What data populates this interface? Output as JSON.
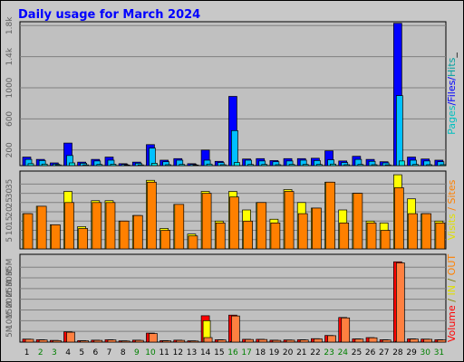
{
  "chart_data": [
    {
      "type": "bar",
      "panel": "hits",
      "title": "Daily usage for March 2024",
      "y_tick_labels": [
        "200",
        "600",
        "1000",
        "1.4k",
        "1.8k"
      ],
      "y_tick_values": [
        200,
        600,
        1000,
        1400,
        1800
      ],
      "ylim": [
        0,
        1850
      ],
      "ylabel_parts": [
        "Pages",
        "/",
        "Files",
        "/",
        "Hits",
        "_"
      ],
      "categories": [
        "1",
        "2",
        "3",
        "4",
        "5",
        "6",
        "7",
        "8",
        "9",
        "10",
        "11",
        "12",
        "13",
        "14",
        "15",
        "16",
        "17",
        "18",
        "19",
        "20",
        "21",
        "22",
        "23",
        "24",
        "25",
        "26",
        "27",
        "28",
        "29",
        "30",
        "31"
      ],
      "series": [
        {
          "name": "Hits",
          "color": "#0000ff",
          "values": [
            110,
            80,
            35,
            290,
            45,
            80,
            110,
            25,
            45,
            270,
            70,
            90,
            25,
            200,
            55,
            890,
            85,
            90,
            65,
            90,
            90,
            95,
            190,
            60,
            120,
            80,
            50,
            1830,
            110,
            85,
            70
          ]
        },
        {
          "name": "Files",
          "color": "#00c0ff",
          "values": [
            80,
            65,
            20,
            130,
            30,
            60,
            70,
            15,
            30,
            225,
            50,
            70,
            15,
            70,
            40,
            450,
            70,
            60,
            50,
            60,
            70,
            65,
            75,
            40,
            80,
            55,
            35,
            900,
            70,
            60,
            50
          ]
        },
        {
          "name": "Pages",
          "color": "#00e0e0",
          "values": [
            25,
            20,
            10,
            35,
            10,
            15,
            18,
            8,
            10,
            30,
            12,
            15,
            8,
            20,
            12,
            40,
            15,
            15,
            12,
            15,
            15,
            15,
            20,
            12,
            15,
            12,
            10,
            60,
            15,
            12,
            12
          ]
        }
      ]
    },
    {
      "type": "bar",
      "panel": "visits",
      "y_tick_labels": [
        "5",
        "10",
        "15",
        "20",
        "25",
        "30",
        "35"
      ],
      "y_tick_values": [
        5,
        10,
        15,
        20,
        25,
        30,
        35
      ],
      "ylim": [
        0,
        42
      ],
      "ylabel_parts": [
        "Visits",
        " / ",
        "Sites"
      ],
      "series": [
        {
          "name": "Sites",
          "color": "#ff8000",
          "values": [
            19,
            23,
            13,
            25,
            11,
            25,
            25,
            15,
            18,
            36,
            10,
            24,
            7,
            30,
            14,
            28,
            15,
            25,
            14,
            31,
            19,
            22,
            36,
            14,
            30,
            14,
            10,
            33,
            19,
            19,
            14
          ]
        },
        {
          "name": "Visits",
          "color": "#ffff00",
          "values": [
            19,
            23,
            13,
            31,
            12,
            26,
            26,
            15,
            18,
            37,
            11,
            24,
            8,
            31,
            15,
            31,
            21,
            25,
            16,
            32,
            25,
            22,
            36,
            21,
            30,
            15,
            14,
            40,
            27,
            19,
            15
          ]
        }
      ]
    },
    {
      "type": "bar",
      "panel": "volume",
      "y_tick_labels": [
        "5M",
        "10M",
        "15M",
        "20M",
        "25M",
        "30M",
        "35M"
      ],
      "y_tick_values": [
        5,
        10,
        15,
        20,
        25,
        30,
        35
      ],
      "y_tick_ypx": [
        365,
        330,
        298,
        264
      ],
      "ylim": [
        0,
        41
      ],
      "ylabel_parts": [
        "Volume",
        " / ",
        "IN",
        " / ",
        "OUT"
      ],
      "series": [
        {
          "name": "Volume",
          "color": "#ff0000",
          "values": [
            1.4,
            1.1,
            0.8,
            4.8,
            0.7,
            0.9,
            1.1,
            0.6,
            0.9,
            4.2,
            0.7,
            0.9,
            0.6,
            12.3,
            1.1,
            12.6,
            1.3,
            1.3,
            0.9,
            1.0,
            1.1,
            1.6,
            3.1,
            11.5,
            1.5,
            2.1,
            1.1,
            37.5,
            1.5,
            1.4,
            1.1
          ]
        },
        {
          "name": "IN",
          "color": "#ffff00",
          "values": [
            0.05,
            0.05,
            0.05,
            0.1,
            0.05,
            0.05,
            0.05,
            0.05,
            0.05,
            0.1,
            0.05,
            0.05,
            0.05,
            10.0,
            0.05,
            0.3,
            0.05,
            0.05,
            0.05,
            0.05,
            0.05,
            0.05,
            0.1,
            0.1,
            0.05,
            0.05,
            0.05,
            0.4,
            0.05,
            0.05,
            0.05
          ]
        },
        {
          "name": "OUT",
          "color": "#ff8040",
          "values": [
            1.3,
            1.0,
            0.7,
            4.6,
            0.6,
            0.8,
            1.0,
            0.5,
            0.8,
            4.0,
            0.6,
            0.8,
            0.5,
            2.1,
            1.0,
            12.2,
            1.2,
            1.2,
            0.8,
            0.9,
            1.0,
            1.5,
            3.0,
            11.3,
            1.4,
            2.0,
            1.0,
            37.0,
            1.4,
            1.3,
            1.0
          ]
        }
      ],
      "weekend_days": [
        "2",
        "3",
        "9",
        "10",
        "16",
        "17",
        "23",
        "24",
        "30",
        "31"
      ],
      "weekday_label_color": "#000000",
      "weekend_label_color": "#008000"
    }
  ]
}
